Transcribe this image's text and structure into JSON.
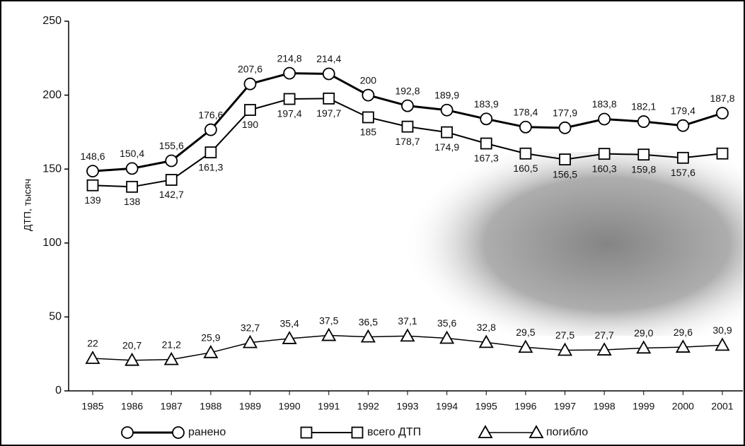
{
  "chart_data": {
    "type": "line",
    "y_label": "ДТП, тысяч",
    "categories": [
      "1985",
      "1986",
      "1987",
      "1988",
      "1989",
      "1990",
      "1991",
      "1992",
      "1993",
      "1994",
      "1995",
      "1996",
      "1997",
      "1998",
      "1999",
      "2000",
      "2001"
    ],
    "ylim": [
      0,
      250
    ],
    "yticks": [
      0,
      50,
      100,
      150,
      200,
      250
    ],
    "series": [
      {
        "name": "ранено",
        "color": "#000000",
        "marker": "circle",
        "values": [
          148.6,
          150.4,
          155.6,
          176.6,
          207.6,
          214.8,
          214.4,
          200,
          192.8,
          189.9,
          183.9,
          178.4,
          177.9,
          183.8,
          182.1,
          179.4,
          187.8
        ],
        "value_labels": [
          "148,6",
          "150,4",
          "155,6",
          "176,6",
          "207,6",
          "214,8",
          "214,4",
          "200",
          "192,8",
          "189,9",
          "183,9",
          "178,4",
          "177,9",
          "183,8",
          "182,1",
          "179,4",
          "187,8"
        ]
      },
      {
        "name": "всего ДТП",
        "color": "#000000",
        "marker": "square",
        "values": [
          139,
          138,
          142.7,
          161.3,
          190,
          197.4,
          197.7,
          185,
          178.7,
          174.9,
          167.3,
          160.5,
          156.5,
          160.3,
          159.8,
          157.6,
          160.5
        ],
        "value_labels": [
          "139",
          "138",
          "142,7",
          "161,3",
          "190",
          "197,4",
          "197,7",
          "185",
          "178,7",
          "174,9",
          "167,3",
          "160,5",
          "156,5",
          "160,3",
          "159,8",
          "157,6",
          null
        ]
      },
      {
        "name": "погибло",
        "color": "#000000",
        "marker": "triangle",
        "values": [
          22,
          20.7,
          21.2,
          25.9,
          32.7,
          35.4,
          37.5,
          36.5,
          37.1,
          35.6,
          32.8,
          29.5,
          27.5,
          27.7,
          29.0,
          29.6,
          30.9
        ],
        "value_labels": [
          "22",
          "20,7",
          "21,2",
          "25,9",
          "32,7",
          "35,4",
          "37,5",
          "36,5",
          "37,1",
          "35,6",
          "32,8",
          "29,5",
          "27,5",
          "27,7",
          "29,0",
          "29,6",
          "30,9"
        ]
      }
    ]
  }
}
